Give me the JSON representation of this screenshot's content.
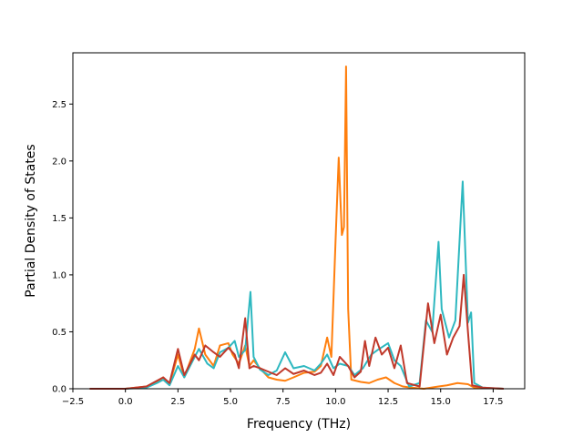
{
  "chart_data": {
    "type": "line",
    "title": "",
    "xlabel": "Frequency (THz)",
    "ylabel": "Partial Density of States",
    "xlim": [
      -2.5,
      19.0
    ],
    "ylim": [
      0.0,
      2.95
    ],
    "xticks": [
      -2.5,
      0.0,
      2.5,
      5.0,
      7.5,
      10.0,
      12.5,
      15.0,
      17.5
    ],
    "xtick_labels": [
      "−2.5",
      "0.0",
      "2.5",
      "5.0",
      "7.5",
      "10.0",
      "12.5",
      "15.0",
      "17.5"
    ],
    "yticks": [
      0.0,
      0.5,
      1.0,
      1.5,
      2.0,
      2.5
    ],
    "ytick_labels": [
      "0.0",
      "0.5",
      "1.0",
      "1.5",
      "2.0",
      "2.5"
    ],
    "grid": false,
    "legend": "none",
    "series": [
      {
        "color": "#ff7f0e",
        "points": [
          [
            -1.7,
            0
          ],
          [
            0,
            0
          ],
          [
            1.0,
            0.02
          ],
          [
            1.5,
            0.06
          ],
          [
            1.8,
            0.1
          ],
          [
            2.1,
            0.04
          ],
          [
            2.5,
            0.3
          ],
          [
            2.8,
            0.1
          ],
          [
            3.3,
            0.35
          ],
          [
            3.5,
            0.53
          ],
          [
            3.8,
            0.3
          ],
          [
            4.2,
            0.2
          ],
          [
            4.5,
            0.38
          ],
          [
            4.9,
            0.4
          ],
          [
            5.1,
            0.3
          ],
          [
            5.4,
            0.22
          ],
          [
            5.7,
            0.38
          ],
          [
            5.9,
            0.2
          ],
          [
            6.1,
            0.25
          ],
          [
            6.4,
            0.18
          ],
          [
            6.8,
            0.1
          ],
          [
            7.2,
            0.08
          ],
          [
            7.6,
            0.07
          ],
          [
            8.0,
            0.1
          ],
          [
            8.5,
            0.14
          ],
          [
            9.0,
            0.15
          ],
          [
            9.3,
            0.2
          ],
          [
            9.6,
            0.45
          ],
          [
            9.8,
            0.28
          ],
          [
            10.0,
            1.3
          ],
          [
            10.15,
            2.03
          ],
          [
            10.3,
            1.35
          ],
          [
            10.4,
            1.42
          ],
          [
            10.5,
            2.83
          ],
          [
            10.6,
            0.7
          ],
          [
            10.75,
            0.08
          ],
          [
            11.2,
            0.06
          ],
          [
            11.6,
            0.05
          ],
          [
            12.0,
            0.08
          ],
          [
            12.4,
            0.1
          ],
          [
            12.8,
            0.05
          ],
          [
            13.2,
            0.02
          ],
          [
            13.6,
            0.01
          ],
          [
            14.2,
            0
          ],
          [
            14.9,
            0.02
          ],
          [
            15.3,
            0.03
          ],
          [
            15.8,
            0.05
          ],
          [
            16.3,
            0.04
          ],
          [
            16.6,
            0.01
          ],
          [
            18,
            0
          ]
        ]
      },
      {
        "color": "#2eb8c0",
        "points": [
          [
            -1.7,
            0
          ],
          [
            0,
            0
          ],
          [
            1.0,
            0.01
          ],
          [
            1.5,
            0.05
          ],
          [
            1.8,
            0.08
          ],
          [
            2.1,
            0.03
          ],
          [
            2.5,
            0.2
          ],
          [
            2.8,
            0.1
          ],
          [
            3.3,
            0.28
          ],
          [
            3.5,
            0.35
          ],
          [
            3.9,
            0.22
          ],
          [
            4.2,
            0.18
          ],
          [
            4.5,
            0.32
          ],
          [
            4.9,
            0.36
          ],
          [
            5.2,
            0.42
          ],
          [
            5.4,
            0.28
          ],
          [
            5.7,
            0.34
          ],
          [
            5.95,
            0.85
          ],
          [
            6.1,
            0.28
          ],
          [
            6.4,
            0.17
          ],
          [
            6.8,
            0.12
          ],
          [
            7.2,
            0.16
          ],
          [
            7.6,
            0.32
          ],
          [
            7.8,
            0.25
          ],
          [
            8.0,
            0.18
          ],
          [
            8.5,
            0.2
          ],
          [
            9.0,
            0.16
          ],
          [
            9.3,
            0.22
          ],
          [
            9.6,
            0.3
          ],
          [
            9.9,
            0.18
          ],
          [
            10.2,
            0.22
          ],
          [
            10.6,
            0.2
          ],
          [
            10.9,
            0.12
          ],
          [
            11.3,
            0.18
          ],
          [
            11.7,
            0.3
          ],
          [
            12.0,
            0.34
          ],
          [
            12.5,
            0.4
          ],
          [
            12.8,
            0.25
          ],
          [
            13.1,
            0.2
          ],
          [
            13.5,
            0.02
          ],
          [
            14.0,
            0.05
          ],
          [
            14.3,
            0.6
          ],
          [
            14.6,
            0.5
          ],
          [
            14.9,
            1.29
          ],
          [
            15.05,
            0.7
          ],
          [
            15.4,
            0.45
          ],
          [
            15.7,
            0.6
          ],
          [
            16.05,
            1.82
          ],
          [
            16.3,
            0.58
          ],
          [
            16.45,
            0.67
          ],
          [
            16.6,
            0.05
          ],
          [
            17,
            0.01
          ],
          [
            18,
            0
          ]
        ]
      },
      {
        "color": "#c0392b",
        "points": [
          [
            -1.7,
            0
          ],
          [
            0,
            0
          ],
          [
            1.0,
            0.02
          ],
          [
            1.5,
            0.07
          ],
          [
            1.8,
            0.1
          ],
          [
            2.1,
            0.05
          ],
          [
            2.5,
            0.35
          ],
          [
            2.8,
            0.12
          ],
          [
            3.3,
            0.3
          ],
          [
            3.5,
            0.25
          ],
          [
            3.8,
            0.38
          ],
          [
            4.2,
            0.32
          ],
          [
            4.5,
            0.28
          ],
          [
            4.9,
            0.36
          ],
          [
            5.2,
            0.3
          ],
          [
            5.4,
            0.18
          ],
          [
            5.7,
            0.62
          ],
          [
            5.9,
            0.18
          ],
          [
            6.1,
            0.2
          ],
          [
            6.4,
            0.18
          ],
          [
            6.8,
            0.15
          ],
          [
            7.2,
            0.12
          ],
          [
            7.6,
            0.18
          ],
          [
            8.0,
            0.13
          ],
          [
            8.5,
            0.16
          ],
          [
            9.0,
            0.12
          ],
          [
            9.3,
            0.14
          ],
          [
            9.6,
            0.22
          ],
          [
            9.9,
            0.12
          ],
          [
            10.2,
            0.28
          ],
          [
            10.6,
            0.2
          ],
          [
            10.9,
            0.1
          ],
          [
            11.2,
            0.15
          ],
          [
            11.4,
            0.42
          ],
          [
            11.6,
            0.2
          ],
          [
            11.9,
            0.45
          ],
          [
            12.2,
            0.3
          ],
          [
            12.5,
            0.36
          ],
          [
            12.8,
            0.18
          ],
          [
            13.1,
            0.38
          ],
          [
            13.4,
            0.05
          ],
          [
            14.0,
            0.02
          ],
          [
            14.4,
            0.75
          ],
          [
            14.7,
            0.4
          ],
          [
            15.0,
            0.65
          ],
          [
            15.3,
            0.3
          ],
          [
            15.6,
            0.45
          ],
          [
            15.9,
            0.55
          ],
          [
            16.1,
            1.0
          ],
          [
            16.3,
            0.5
          ],
          [
            16.5,
            0.03
          ],
          [
            17,
            0.01
          ],
          [
            18,
            0
          ]
        ]
      }
    ]
  }
}
